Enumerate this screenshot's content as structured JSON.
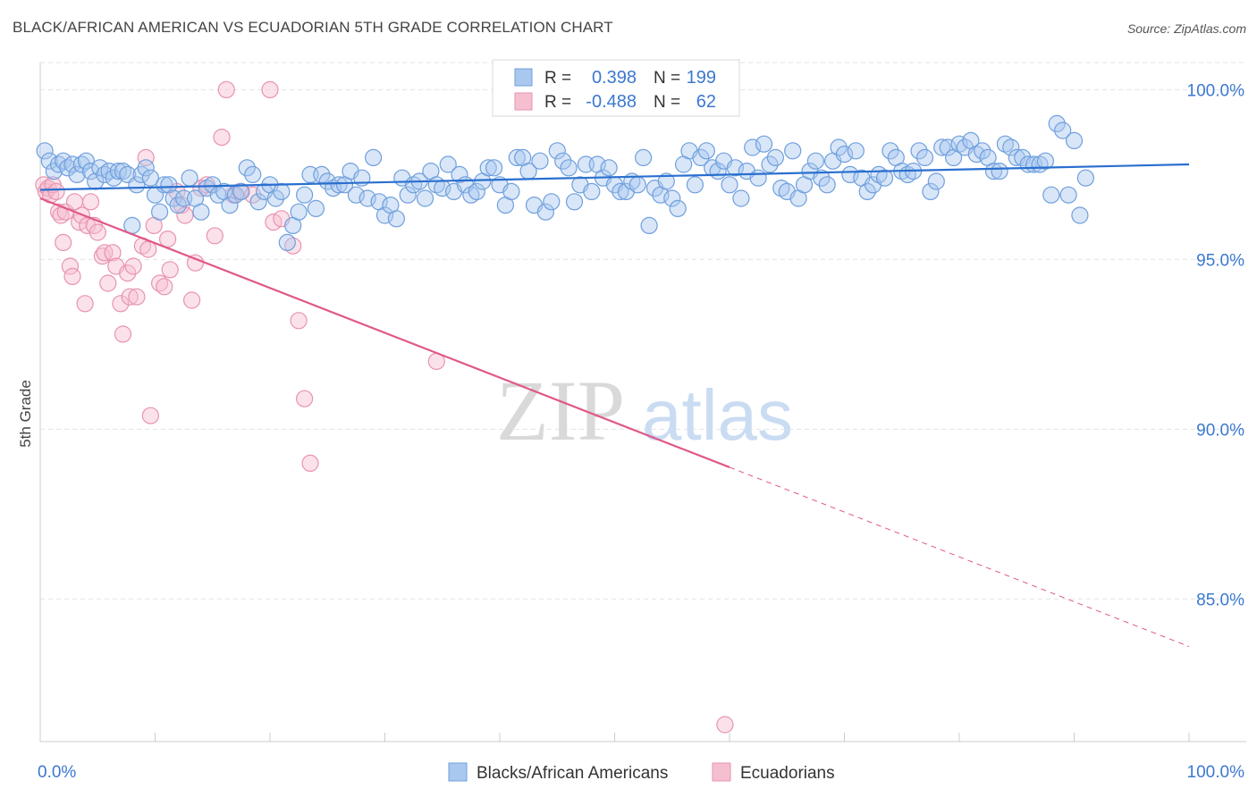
{
  "title": "BLACK/AFRICAN AMERICAN VS ECUADORIAN 5TH GRADE CORRELATION CHART",
  "source": "Source: ZipAtlas.com",
  "watermark": {
    "zip": "ZIP",
    "atlas": "atlas"
  },
  "colors": {
    "blue_fill": "#a9c8ef",
    "blue_stroke": "#6f9fdc",
    "blue_line": "#2a6fcf",
    "pink_fill": "#f6bfd0",
    "pink_stroke": "#e893b0",
    "pink_line": "#e0588a",
    "axis_text": "#3b78d0",
    "grid": "#e4e4e4"
  },
  "stats_box": {
    "r_label": "R =",
    "n_label": "N =",
    "rows": [
      {
        "series": "blue",
        "r": "0.398",
        "n": "199"
      },
      {
        "series": "pink",
        "r": "-0.488",
        "n": "62"
      }
    ]
  },
  "chart_data": {
    "type": "scatter",
    "title": "BLACK/AFRICAN AMERICAN VS ECUADORIAN 5TH GRADE CORRELATION CHART",
    "xlabel": "",
    "ylabel": "5th Grade",
    "xlim": [
      0,
      100
    ],
    "ylim": [
      80.8,
      100.8
    ],
    "x_tick_labels": [
      "0.0%",
      "100.0%"
    ],
    "y_ticks": [
      85,
      90,
      95,
      100
    ],
    "y_tick_labels": [
      "85.0%",
      "90.0%",
      "95.0%",
      "100.0%"
    ],
    "series": [
      {
        "name": "Blacks/African Americans",
        "color": "blue",
        "trend": {
          "x0": 0,
          "y0": 97.05,
          "x1": 100,
          "y1": 97.8,
          "solid_until": 100
        },
        "points": [
          [
            0.4,
            98.2
          ],
          [
            0.8,
            97.9
          ],
          [
            1.2,
            97.6
          ],
          [
            1.6,
            97.8
          ],
          [
            2.0,
            97.9
          ],
          [
            2.4,
            97.7
          ],
          [
            2.8,
            97.8
          ],
          [
            3.2,
            97.5
          ],
          [
            3.6,
            97.8
          ],
          [
            4.0,
            97.9
          ],
          [
            4.4,
            97.6
          ],
          [
            4.8,
            97.3
          ],
          [
            5.2,
            97.7
          ],
          [
            5.6,
            97.5
          ],
          [
            6.0,
            97.6
          ],
          [
            6.4,
            97.4
          ],
          [
            6.8,
            97.6
          ],
          [
            7.2,
            97.6
          ],
          [
            7.6,
            97.5
          ],
          [
            8.0,
            96.0
          ],
          [
            8.4,
            97.2
          ],
          [
            8.8,
            97.5
          ],
          [
            9.2,
            97.7
          ],
          [
            9.6,
            97.4
          ],
          [
            10.0,
            96.9
          ],
          [
            10.4,
            96.4
          ],
          [
            10.8,
            97.2
          ],
          [
            11.2,
            97.2
          ],
          [
            11.6,
            96.8
          ],
          [
            12.0,
            96.6
          ],
          [
            12.5,
            96.8
          ],
          [
            13.0,
            97.4
          ],
          [
            13.5,
            96.8
          ],
          [
            14.0,
            96.4
          ],
          [
            14.5,
            97.1
          ],
          [
            15.0,
            97.2
          ],
          [
            15.5,
            96.9
          ],
          [
            16.0,
            97.0
          ],
          [
            16.5,
            96.6
          ],
          [
            17.0,
            96.9
          ],
          [
            17.5,
            97.0
          ],
          [
            18.0,
            97.7
          ],
          [
            18.5,
            97.5
          ],
          [
            19.0,
            96.7
          ],
          [
            19.5,
            97.0
          ],
          [
            20.0,
            97.2
          ],
          [
            20.5,
            96.8
          ],
          [
            21.0,
            97.0
          ],
          [
            21.5,
            95.5
          ],
          [
            22.0,
            96.0
          ],
          [
            22.5,
            96.4
          ],
          [
            23.0,
            96.9
          ],
          [
            23.5,
            97.5
          ],
          [
            24.0,
            96.5
          ],
          [
            24.5,
            97.5
          ],
          [
            25.0,
            97.3
          ],
          [
            25.5,
            97.1
          ],
          [
            26.0,
            97.2
          ],
          [
            26.5,
            97.2
          ],
          [
            27.0,
            97.6
          ],
          [
            27.5,
            96.9
          ],
          [
            28.0,
            97.4
          ],
          [
            28.5,
            96.8
          ],
          [
            29.0,
            98.0
          ],
          [
            29.5,
            96.7
          ],
          [
            30.0,
            96.3
          ],
          [
            30.5,
            96.6
          ],
          [
            31.0,
            96.2
          ],
          [
            31.5,
            97.4
          ],
          [
            32.0,
            96.9
          ],
          [
            32.5,
            97.2
          ],
          [
            33.0,
            97.3
          ],
          [
            33.5,
            96.8
          ],
          [
            34.0,
            97.6
          ],
          [
            34.5,
            97.2
          ],
          [
            35.0,
            97.1
          ],
          [
            35.5,
            97.8
          ],
          [
            36.0,
            97.0
          ],
          [
            36.5,
            97.5
          ],
          [
            37.0,
            97.2
          ],
          [
            37.5,
            96.9
          ],
          [
            38.0,
            97.0
          ],
          [
            38.5,
            97.3
          ],
          [
            39.0,
            97.7
          ],
          [
            39.5,
            97.7
          ],
          [
            40.0,
            97.2
          ],
          [
            40.5,
            96.6
          ],
          [
            41.0,
            97.0
          ],
          [
            41.5,
            98.0
          ],
          [
            42.0,
            98.0
          ],
          [
            42.5,
            97.6
          ],
          [
            43.0,
            96.6
          ],
          [
            43.5,
            97.9
          ],
          [
            44.0,
            96.4
          ],
          [
            44.5,
            96.7
          ],
          [
            45.0,
            98.2
          ],
          [
            45.5,
            97.9
          ],
          [
            46.0,
            97.7
          ],
          [
            46.5,
            96.7
          ],
          [
            47.0,
            97.2
          ],
          [
            47.5,
            97.8
          ],
          [
            48.0,
            97.0
          ],
          [
            48.5,
            97.8
          ],
          [
            49.0,
            97.4
          ],
          [
            49.5,
            97.7
          ],
          [
            50.0,
            97.2
          ],
          [
            50.5,
            97.0
          ],
          [
            51.0,
            97.0
          ],
          [
            51.5,
            97.3
          ],
          [
            52.0,
            97.2
          ],
          [
            52.5,
            98.0
          ],
          [
            53.0,
            96.0
          ],
          [
            53.5,
            97.1
          ],
          [
            54.0,
            96.9
          ],
          [
            54.5,
            97.3
          ],
          [
            55.0,
            96.8
          ],
          [
            55.5,
            96.5
          ],
          [
            56.0,
            97.8
          ],
          [
            56.5,
            98.2
          ],
          [
            57.0,
            97.2
          ],
          [
            57.5,
            98.0
          ],
          [
            58.0,
            98.2
          ],
          [
            58.5,
            97.7
          ],
          [
            59.0,
            97.6
          ],
          [
            59.5,
            97.9
          ],
          [
            60.0,
            97.2
          ],
          [
            60.5,
            97.7
          ],
          [
            61.0,
            96.8
          ],
          [
            61.5,
            97.6
          ],
          [
            62.0,
            98.3
          ],
          [
            62.5,
            97.4
          ],
          [
            63.0,
            98.4
          ],
          [
            63.5,
            97.8
          ],
          [
            64.0,
            98.0
          ],
          [
            64.5,
            97.1
          ],
          [
            65.0,
            97.0
          ],
          [
            65.5,
            98.2
          ],
          [
            66.0,
            96.8
          ],
          [
            66.5,
            97.2
          ],
          [
            67.0,
            97.6
          ],
          [
            67.5,
            97.9
          ],
          [
            68.0,
            97.4
          ],
          [
            68.5,
            97.2
          ],
          [
            69.0,
            97.9
          ],
          [
            69.5,
            98.3
          ],
          [
            70.0,
            98.1
          ],
          [
            70.5,
            97.5
          ],
          [
            71.0,
            98.2
          ],
          [
            71.5,
            97.4
          ],
          [
            72.0,
            97.0
          ],
          [
            72.5,
            97.2
          ],
          [
            73.0,
            97.5
          ],
          [
            73.5,
            97.4
          ],
          [
            74.0,
            98.2
          ],
          [
            74.5,
            98.0
          ],
          [
            75.0,
            97.6
          ],
          [
            75.5,
            97.5
          ],
          [
            76.0,
            97.6
          ],
          [
            76.5,
            98.2
          ],
          [
            77.0,
            98.0
          ],
          [
            77.5,
            97.0
          ],
          [
            78.0,
            97.3
          ],
          [
            78.5,
            98.3
          ],
          [
            79.0,
            98.3
          ],
          [
            79.5,
            98.0
          ],
          [
            80.0,
            98.4
          ],
          [
            80.5,
            98.3
          ],
          [
            81.0,
            98.5
          ],
          [
            81.5,
            98.1
          ],
          [
            82.0,
            98.2
          ],
          [
            82.5,
            98.0
          ],
          [
            83.0,
            97.6
          ],
          [
            83.5,
            97.6
          ],
          [
            84.0,
            98.4
          ],
          [
            84.5,
            98.3
          ],
          [
            85.0,
            98.0
          ],
          [
            85.5,
            98.0
          ],
          [
            86.0,
            97.8
          ],
          [
            86.5,
            97.8
          ],
          [
            87.0,
            97.8
          ],
          [
            87.5,
            97.9
          ],
          [
            88.0,
            96.9
          ],
          [
            88.5,
            99.0
          ],
          [
            89.0,
            98.8
          ],
          [
            89.5,
            96.9
          ],
          [
            90.0,
            98.5
          ],
          [
            90.5,
            96.3
          ],
          [
            91.0,
            97.4
          ]
        ]
      },
      {
        "name": "Ecuadorians",
        "color": "pink",
        "trend": {
          "x0": 0,
          "y0": 96.8,
          "x1": 100,
          "y1": 83.6,
          "solid_until": 60
        },
        "points": [
          [
            0.3,
            97.2
          ],
          [
            0.5,
            97.0
          ],
          [
            0.7,
            97.1
          ],
          [
            0.9,
            96.9
          ],
          [
            1.1,
            97.2
          ],
          [
            1.4,
            97.0
          ],
          [
            1.6,
            96.4
          ],
          [
            1.8,
            96.3
          ],
          [
            2.0,
            95.5
          ],
          [
            2.2,
            96.4
          ],
          [
            2.6,
            94.8
          ],
          [
            2.8,
            94.5
          ],
          [
            3.0,
            96.7
          ],
          [
            3.4,
            96.1
          ],
          [
            3.6,
            96.3
          ],
          [
            3.9,
            93.7
          ],
          [
            4.1,
            96.0
          ],
          [
            4.4,
            96.7
          ],
          [
            4.7,
            96.0
          ],
          [
            5.0,
            95.8
          ],
          [
            5.4,
            95.1
          ],
          [
            5.6,
            95.2
          ],
          [
            5.9,
            94.3
          ],
          [
            6.3,
            95.2
          ],
          [
            6.6,
            94.8
          ],
          [
            7.0,
            93.7
          ],
          [
            7.2,
            92.8
          ],
          [
            7.6,
            94.6
          ],
          [
            7.8,
            93.9
          ],
          [
            8.1,
            94.8
          ],
          [
            8.4,
            93.9
          ],
          [
            8.9,
            95.4
          ],
          [
            9.2,
            98.0
          ],
          [
            9.4,
            95.3
          ],
          [
            9.6,
            90.4
          ],
          [
            9.9,
            96.0
          ],
          [
            10.4,
            94.3
          ],
          [
            10.8,
            94.2
          ],
          [
            11.1,
            95.6
          ],
          [
            11.3,
            94.7
          ],
          [
            11.9,
            97.0
          ],
          [
            12.3,
            96.6
          ],
          [
            12.6,
            96.3
          ],
          [
            13.2,
            93.8
          ],
          [
            13.5,
            94.9
          ],
          [
            14.0,
            97.1
          ],
          [
            14.5,
            97.2
          ],
          [
            15.2,
            95.7
          ],
          [
            15.8,
            98.6
          ],
          [
            16.2,
            100.0
          ],
          [
            16.8,
            96.9
          ],
          [
            17.4,
            97.0
          ],
          [
            18.5,
            96.9
          ],
          [
            20.0,
            100.0
          ],
          [
            20.3,
            96.1
          ],
          [
            21.0,
            96.2
          ],
          [
            22.0,
            95.4
          ],
          [
            22.5,
            93.2
          ],
          [
            23.0,
            90.9
          ],
          [
            23.5,
            89.0
          ],
          [
            34.5,
            92.0
          ],
          [
            59.6,
            81.3
          ]
        ]
      }
    ]
  },
  "legend": {
    "items": [
      "Blacks/African Americans",
      "Ecuadorians"
    ]
  }
}
